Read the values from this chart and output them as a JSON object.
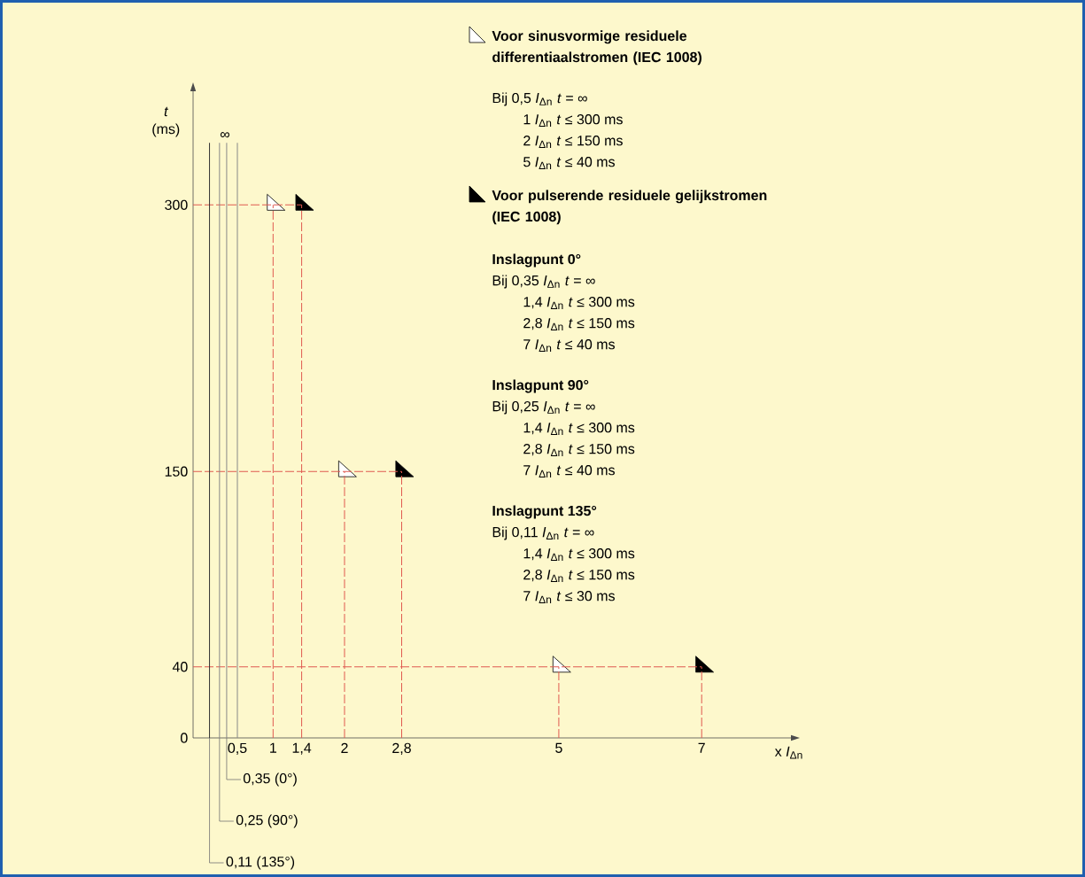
{
  "chart_data": {
    "type": "line",
    "xlabel": "x *I*$_{Δn}$",
    "ylabel": "*t* (ms)",
    "xlim": [
      -0.12,
      8.25
    ],
    "ylim": [
      0,
      364
    ],
    "xticks": [
      {
        "value": 0.5,
        "label": "0,5"
      },
      1,
      {
        "value": 1.4,
        "label": "1,4"
      },
      2,
      {
        "value": 2.8,
        "label": "2,8"
      },
      5,
      7
    ],
    "yticks": [
      0,
      40,
      150,
      300
    ],
    "legend": "top right",
    "series": [
      {
        "name": "Voor sinusvormige residuele differentiaalstromen (IEC 1008)",
        "type": "scatter",
        "marker": "triangle",
        "color": "#ffffff",
        "x": [
          1,
          2,
          5
        ],
        "values": [
          300,
          150,
          40
        ]
      },
      {
        "name": "Voor pulserende residuele gelijkstromen (IEC 1008)",
        "type": "scatter",
        "marker": "triangle",
        "color": "#000000",
        "x": [
          1.4,
          2.8,
          7
        ],
        "values": [
          300,
          150,
          40
        ]
      },
      {
        "line_style": "dashed",
        "color": "#e05a50",
        "x": [
          -0.12,
          1.4
        ],
        "values": [
          300,
          300
        ]
      },
      {
        "line_style": "dashed",
        "color": "#e05a50",
        "x": [
          1,
          1
        ],
        "values": [
          0,
          300
        ]
      },
      {
        "line_style": "dashed",
        "color": "#e05a50",
        "x": [
          1.4,
          1.4
        ],
        "values": [
          0,
          300
        ]
      },
      {
        "line_style": "dashed",
        "color": "#e05a50",
        "x": [
          -0.12,
          2.8
        ],
        "values": [
          150,
          150
        ]
      },
      {
        "line_style": "dashed",
        "color": "#e05a50",
        "x": [
          2,
          2
        ],
        "values": [
          0,
          150
        ]
      },
      {
        "line_style": "dashed",
        "color": "#e05a50",
        "x": [
          2.8,
          2.8
        ],
        "values": [
          0,
          150
        ]
      },
      {
        "line_style": "dashed",
        "color": "#e05a50",
        "x": [
          -0.12,
          7
        ],
        "values": [
          40,
          40
        ]
      },
      {
        "line_style": "dashed",
        "color": "#e05a50",
        "x": [
          5,
          5
        ],
        "values": [
          0,
          40
        ]
      },
      {
        "line_style": "dashed",
        "color": "#e05a50",
        "x": [
          7,
          7
        ],
        "values": [
          0,
          40
        ]
      },
      {
        "line_style": "solid",
        "color": "#333333",
        "x": [
          0.11,
          0.11
        ],
        "values": [
          0,
          335
        ]
      },
      {
        "line_style": "solid",
        "color": "#888888",
        "x": [
          0.25,
          0.25
        ],
        "values": [
          0,
          335
        ]
      },
      {
        "line_style": "solid",
        "color": "#888888",
        "x": [
          0.35,
          0.35
        ],
        "values": [
          0,
          335
        ]
      },
      {
        "line_style": "solid",
        "color": "#888888",
        "x": [
          0.5,
          0.5
        ],
        "values": [
          0,
          335
        ]
      }
    ],
    "annotations": [
      "Bij 0,5 *I*$_{Δn}$ *t* = ∞",
      "1 *I*$_{Δn}$ *t* ≤ 300 ms",
      "2 *I*$_{Δn}$ *t* ≤ 150 ms",
      "5 *I*$_{Δn}$ *t* ≤ 40 ms",
      "Inslagpunt 0°",
      "Bij 0,35 *I*$_{Δn}$ *t* = ∞",
      "1,4 *I*$_{Δn}$ *t* ≤ 300 ms",
      "2,8 *I*$_{Δn}$ *t* ≤ 150 ms",
      "7 *I*$_{Δn}$ *t* ≤ 40 ms",
      "Inslagpunt 90°",
      "Bij 0,25 *I*$_{Δn}$ *t* = ∞",
      "1,4 *I*$_{Δn}$ *t* ≤ 300 ms",
      "2,8 *I*$_{Δn}$ *t* ≤ 150 ms",
      "7 *I*$_{Δn}$ *t* ≤ 40 ms",
      "Inslagpunt 135°",
      "Bij 0,11 *I*$_{Δn}$ *t* = ∞",
      "1,4 *I*$_{Δn}$ *t* ≤ 300 ms",
      "2,8 *I*$_{Δn}$ *t* ≤ 150 ms",
      "7 *I*$_{Δn}$ *t* ≤ 30 ms",
      {
        "text": "∞",
        "x": 0.25,
        "y": 335
      },
      {
        "text": "0,35 (0°)",
        "x": 0.35,
        "y": 0
      },
      {
        "text": "0,25 (90°)",
        "x": 0.25,
        "y": 0
      },
      {
        "text": "0,11 (135°)",
        "x": 0.11,
        "y": 0
      }
    ]
  }
}
